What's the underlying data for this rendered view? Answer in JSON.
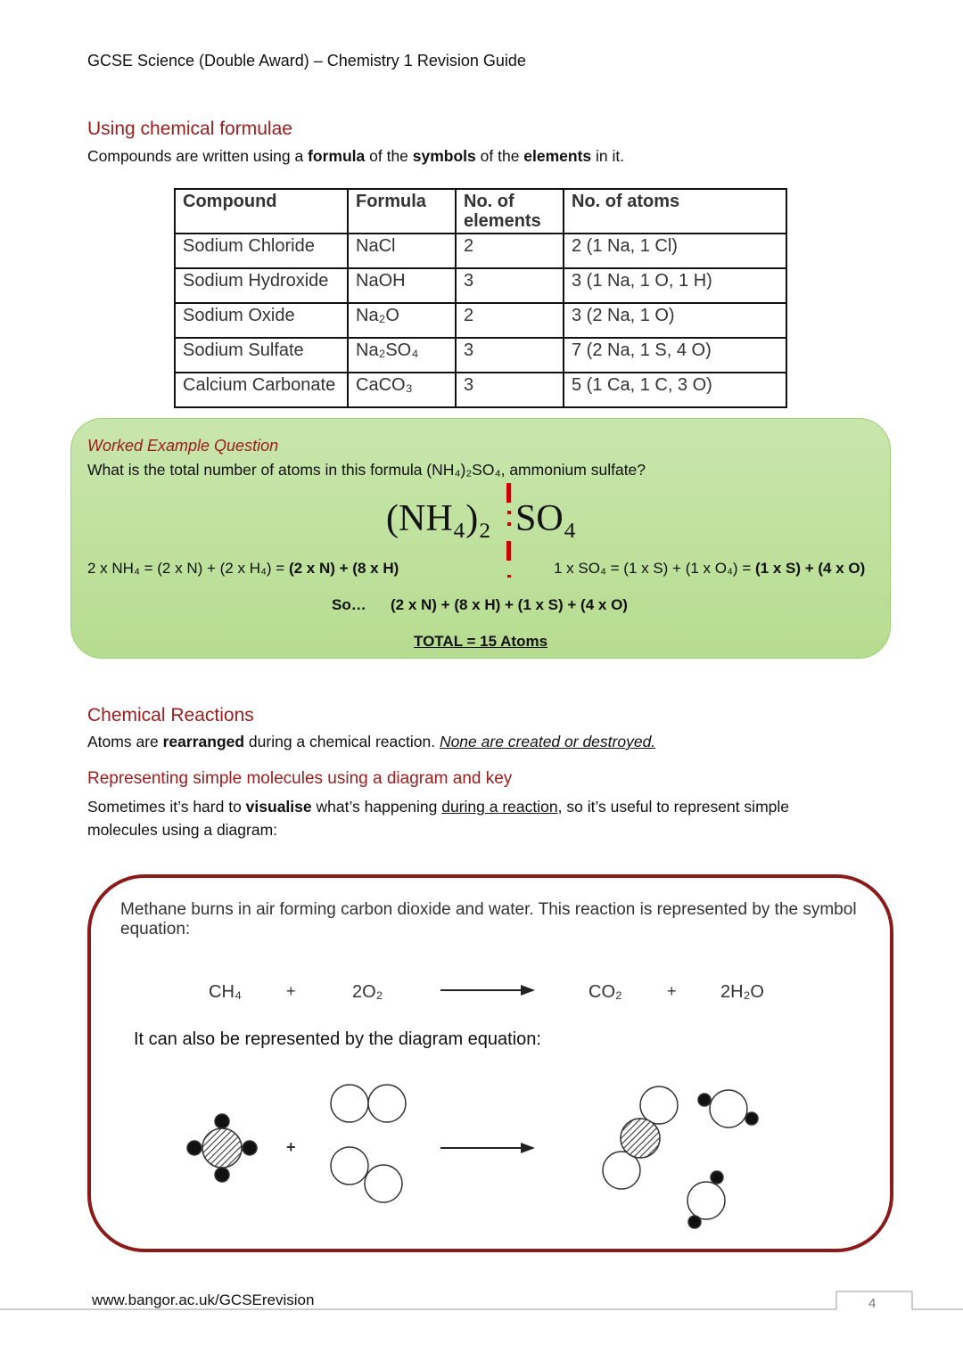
{
  "header": "GCSE Science (Double Award) – Chemistry 1 Revision Guide",
  "s1": {
    "title": "Using chemical formulae",
    "intro": [
      "Compounds are written using a ",
      "formula",
      " of the ",
      "symbols",
      " of the ",
      "elements",
      " in it."
    ]
  },
  "table": {
    "headers": [
      "Compound",
      "Formula",
      "No. of elements",
      "No. of atoms"
    ],
    "rows": [
      [
        "Sodium Chloride",
        "NaCl",
        "2",
        "2 (1 Na, 1 Cl)"
      ],
      [
        "Sodium Hydroxide",
        "NaOH",
        "3",
        "3 (1 Na, 1 O, 1 H)"
      ],
      [
        "Sodium Oxide",
        "Na₂O",
        "2",
        "3 (2 Na, 1 O)"
      ],
      [
        "Sodium Sulfate",
        "Na₂SO₄",
        "3",
        "7 (2 Na, 1 S, 4 O)"
      ],
      [
        "Calcium Carbonate",
        "CaCO₃",
        "3",
        "5 (1 Ca, 1 C, 3 O)"
      ]
    ]
  },
  "worked": {
    "label": "Worked Example Question",
    "question": "What is the total number of atoms in this formula (NH₄)₂SO₄, ammonium sulfate?",
    "formula_left": "(NH₄)₂",
    "formula_right": "SO₄",
    "left_plain": "2 x NH₄ = (2 x N) + (2 x H₄) = ",
    "left_bold": "(2 x N) + (8 x H)",
    "right_plain": "1 x SO₄ = (1 x S) + (1 x O₄) = ",
    "right_bold": "(1 x S) + (4 x O)",
    "so": "So…",
    "sum": "(2 x N) + (8 x H) + (1 x S) + (4 x O)",
    "total": "TOTAL = 15 Atoms"
  },
  "s2": {
    "title": "Chemical Reactions",
    "t1": "Atoms are ",
    "t2": "rearranged",
    "t3": " during a chemical reaction. ",
    "t4": "None are created or destroyed."
  },
  "s3": {
    "title": "Representing simple molecules using a diagram and key",
    "t1": "Sometimes it’s hard to ",
    "t2": "visualise",
    "t3": " what’s happening ",
    "t4": "during a reaction",
    "t5": ", so it’s useful to represent simple molecules using a diagram:"
  },
  "box": {
    "intro": "Methane burns in air forming carbon dioxide and water. This reaction is represented by the symbol equation:",
    "eq": [
      "CH₄",
      "+",
      "2O₂",
      "CO₂",
      "+",
      "2H₂O"
    ],
    "diagram_text": "It can also be represented by the diagram equation:",
    "plus": "+"
  },
  "footer": {
    "url": "www.bangor.ac.uk/GCSErevision",
    "page": "4"
  },
  "colors": {
    "heading": "#9b1c1c",
    "green": "#c5e3a5",
    "box_border": "#8b1a1a",
    "divider": "#cc0000"
  }
}
